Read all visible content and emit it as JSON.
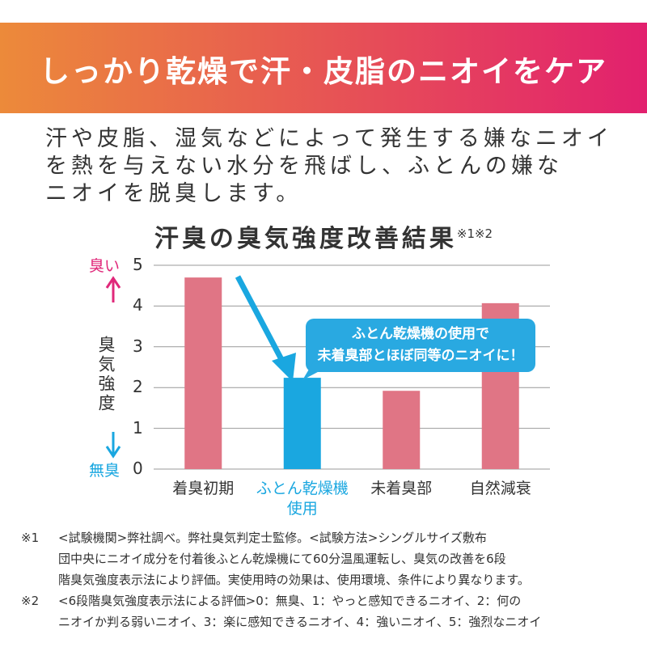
{
  "banner": {
    "title": "しっかり乾燥で汗・皮脂のニオイをケア"
  },
  "description": {
    "lines": [
      "汗や皮脂、湿気などによって発生する嫌なニオイ",
      "を熱を与えない水分を飛ばし、ふとんの嫌な",
      "ニオイを脱臭します。"
    ]
  },
  "chart_data": {
    "type": "bar",
    "title": "汗臭の臭気強度改善結果",
    "title_note": "※1※2",
    "y_label": "臭気強度",
    "top_label": "臭い",
    "bottom_label": "無臭",
    "categories": [
      "着臭初期",
      "ふとん乾燥機使用",
      "未着臭部",
      "自然減衰"
    ],
    "values": [
      4.7,
      2.24,
      1.92,
      4.07
    ],
    "colors": [
      "#e07585",
      "#1aa7e0",
      "#e07585",
      "#e07585"
    ],
    "ylim": [
      0,
      5
    ],
    "yticks": [
      0,
      1,
      2,
      3,
      4,
      5
    ],
    "grid": true,
    "callout": {
      "lines": [
        "ふとん乾燥機の使用で",
        "未着臭部とほぼ同等のニオイに！"
      ]
    }
  },
  "footnotes": [
    {
      "mark": "※1",
      "lines": [
        "<試験機関>弊社調べ。弊社臭気判定士監修。<試験方法>シングルサイズ敷布",
        "団中央にニオイ成分を付着後ふとん乾燥機にて60分温風運転し、臭気の改善を6段",
        "階臭気強度表示法により評価。実使用時の効果は、使用環境、条件により異なります。"
      ]
    },
    {
      "mark": "※2",
      "lines": [
        "<6段階臭気強度表示法による評価>0：無臭、1：やっと感知できるニオイ、2：何の",
        "ニオイか判る弱いニオイ、3：楽に感知できるニオイ、4：強いニオイ、5：強烈なニオイ"
      ]
    }
  ]
}
